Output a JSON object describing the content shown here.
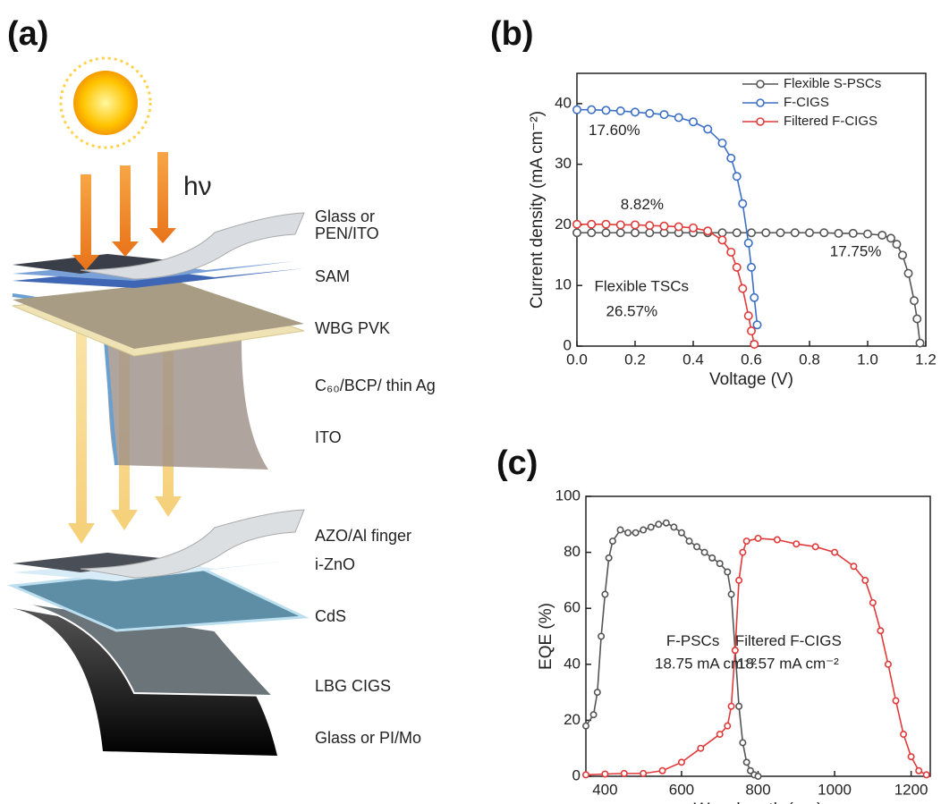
{
  "diagram": {
    "label": "(a)",
    "light": "hν",
    "layers": [
      "Glass or",
      "PEN/ITO",
      "SAM",
      "WBG PVK",
      "C₆₀/BCP/ thin Ag",
      "ITO",
      "AZO/Al finger",
      "i-ZnO",
      "CdS",
      "LBG CIGS",
      "Glass or PI/Mo"
    ]
  },
  "chart_data": [
    {
      "type": "line",
      "panel": "(b)",
      "xlabel": "Voltage (V)",
      "ylabel": "Current density (mA cm⁻²)",
      "xlim": [
        0,
        1.2
      ],
      "ylim": [
        0,
        45
      ],
      "xticks": [
        {
          "value": 0,
          "label": "0.0"
        },
        0.2,
        0.4,
        0.6,
        0.8,
        {
          "value": 1,
          "label": "1.0"
        },
        1.2
      ],
      "yticks": [
        0,
        10,
        20,
        30,
        40
      ],
      "legend": "upper right",
      "series": [
        {
          "name": "Flexible S-PSCs",
          "color": "#555555",
          "x": [
            0,
            0.05,
            0.1,
            0.15,
            0.2,
            0.25,
            0.3,
            0.35,
            0.4,
            0.45,
            0.5,
            0.55,
            0.6,
            0.65,
            0.7,
            0.75,
            0.8,
            0.85,
            0.9,
            0.95,
            1.0,
            1.05,
            1.08,
            1.1,
            1.12,
            1.14,
            1.16,
            1.17,
            1.18
          ],
          "values": [
            18.7,
            18.7,
            18.7,
            18.7,
            18.7,
            18.7,
            18.7,
            18.7,
            18.7,
            18.7,
            18.7,
            18.7,
            18.7,
            18.7,
            18.7,
            18.7,
            18.7,
            18.7,
            18.6,
            18.6,
            18.5,
            18.3,
            17.8,
            16.8,
            15,
            12,
            7.5,
            4.5,
            0.5
          ]
        },
        {
          "name": "F-CIGS",
          "color": "#3d6fc4",
          "x": [
            0,
            0.05,
            0.1,
            0.15,
            0.2,
            0.25,
            0.3,
            0.35,
            0.4,
            0.45,
            0.5,
            0.53,
            0.55,
            0.57,
            0.59,
            0.6,
            0.61,
            0.62
          ],
          "values": [
            39,
            39,
            38.9,
            38.8,
            38.6,
            38.4,
            38.2,
            37.7,
            37,
            35.8,
            33.5,
            31,
            28,
            23.5,
            17,
            13,
            8,
            3.5
          ]
        },
        {
          "name": "Filtered F-CIGS",
          "color": "#e03a3a",
          "x": [
            0,
            0.05,
            0.1,
            0.15,
            0.2,
            0.25,
            0.3,
            0.35,
            0.4,
            0.45,
            0.5,
            0.53,
            0.55,
            0.57,
            0.59,
            0.6,
            0.61
          ],
          "values": [
            20.1,
            20.1,
            20.1,
            20,
            20,
            19.9,
            19.8,
            19.7,
            19.5,
            19,
            17.5,
            15.5,
            13,
            9.5,
            5,
            2.5,
            0.3
          ]
        }
      ],
      "annotations": [
        "17.60%",
        "8.82%",
        "17.75%",
        "Flexible TSCs",
        "26.57%"
      ]
    },
    {
      "type": "line",
      "panel": "(c)",
      "xlabel": "Wavelength (nm)",
      "ylabel": "EQE (%)",
      "xlim": [
        350,
        1250
      ],
      "ylim": [
        0,
        100
      ],
      "xticks": [
        400,
        600,
        800,
        1000,
        1200
      ],
      "yticks": [
        0,
        20,
        40,
        60,
        80,
        100
      ],
      "series": [
        {
          "name": "F-PSCs",
          "color": "#555555",
          "x": [
            350,
            370,
            380,
            390,
            400,
            410,
            420,
            440,
            460,
            480,
            500,
            520,
            540,
            560,
            580,
            600,
            620,
            640,
            660,
            680,
            700,
            720,
            730,
            740,
            750,
            760,
            770,
            780,
            790,
            800
          ],
          "values": [
            18,
            22,
            30,
            50,
            65,
            78,
            84,
            88,
            87,
            87,
            88,
            89,
            90,
            90.5,
            89,
            87,
            84,
            82,
            80,
            78,
            76,
            73,
            65,
            45,
            25,
            12,
            5,
            2,
            0.5,
            0
          ]
        },
        {
          "name": "Filtered F-CIGS",
          "color": "#e03a3a",
          "x": [
            350,
            400,
            450,
            500,
            550,
            600,
            650,
            700,
            720,
            730,
            740,
            750,
            760,
            770,
            800,
            850,
            900,
            950,
            1000,
            1050,
            1080,
            1100,
            1120,
            1140,
            1160,
            1180,
            1200,
            1220,
            1240
          ],
          "values": [
            0.5,
            0.8,
            1,
            1,
            2,
            5,
            10,
            15,
            18,
            25,
            45,
            70,
            80,
            84,
            85,
            84.5,
            83,
            82,
            80,
            75,
            70,
            62,
            52,
            40,
            27,
            15,
            7,
            2,
            0.5
          ]
        }
      ],
      "annotations": [
        "F-PSCs",
        "18.75 mA cm⁻²",
        "Filtered F-CIGS",
        "18.57 mA cm⁻²"
      ]
    }
  ]
}
